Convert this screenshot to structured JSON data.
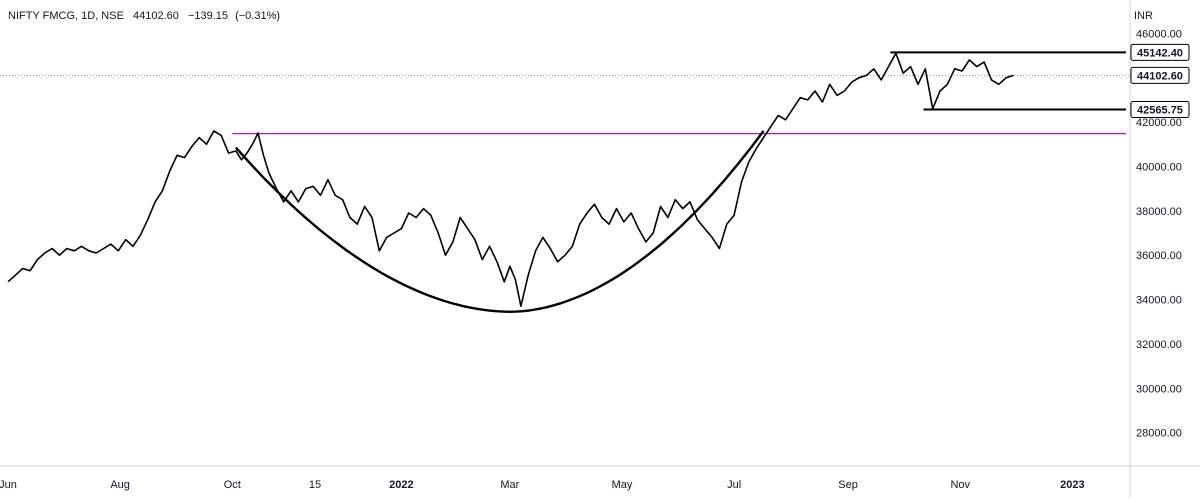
{
  "legend": {
    "symbol_text": "NIFTY FMCG, 1D, NSE",
    "close": "44102.60",
    "change": "−139.15",
    "change_pct": "(−0.31%)"
  },
  "currency": "INR",
  "colors": {
    "price_line": "#000000",
    "resistance_line": "#9c27b0",
    "grid_dotted": "#787b86",
    "axis_border": "#d1d4dc",
    "badge_bg": "#ffffff",
    "badge_border": "#000000"
  },
  "chart_data": {
    "type": "line",
    "title": "NIFTY FMCG, 1D, NSE",
    "ylabel": "INR",
    "ylim": [
      26500,
      47500
    ],
    "xlim": [
      "2021-06-01",
      "2023-01-28"
    ],
    "y_ticks": [
      "46000.00",
      "42000.00",
      "40000.00",
      "38000.00",
      "36000.00",
      "34000.00",
      "32000.00",
      "30000.00",
      "28000.00"
    ],
    "x_ticks": [
      {
        "label": "Jun",
        "date": "2021-06-01",
        "bold": false
      },
      {
        "label": "Aug",
        "date": "2021-08-01",
        "bold": false
      },
      {
        "label": "Oct",
        "date": "2021-10-01",
        "bold": false
      },
      {
        "label": "15",
        "date": "2021-11-15",
        "bold": false
      },
      {
        "label": "2022",
        "date": "2022-01-01",
        "bold": true
      },
      {
        "label": "Mar",
        "date": "2022-03-01",
        "bold": false
      },
      {
        "label": "May",
        "date": "2022-05-01",
        "bold": false
      },
      {
        "label": "Jul",
        "date": "2022-07-01",
        "bold": false
      },
      {
        "label": "Sep",
        "date": "2022-09-01",
        "bold": false
      },
      {
        "label": "Nov",
        "date": "2022-11-01",
        "bold": false
      },
      {
        "label": "2023",
        "date": "2023-01-01",
        "bold": true
      }
    ],
    "series": [
      {
        "name": "",
        "points": [
          [
            "2021-06-01",
            34800
          ],
          [
            "2021-06-05",
            35100
          ],
          [
            "2021-06-09",
            35400
          ],
          [
            "2021-06-13",
            35300
          ],
          [
            "2021-06-17",
            35800
          ],
          [
            "2021-06-21",
            36100
          ],
          [
            "2021-06-25",
            36300
          ],
          [
            "2021-06-29",
            36000
          ],
          [
            "2021-07-03",
            36300
          ],
          [
            "2021-07-07",
            36200
          ],
          [
            "2021-07-11",
            36400
          ],
          [
            "2021-07-15",
            36200
          ],
          [
            "2021-07-19",
            36100
          ],
          [
            "2021-07-23",
            36300
          ],
          [
            "2021-07-27",
            36500
          ],
          [
            "2021-07-31",
            36200
          ],
          [
            "2021-08-04",
            36700
          ],
          [
            "2021-08-08",
            36400
          ],
          [
            "2021-08-12",
            36900
          ],
          [
            "2021-08-16",
            37600
          ],
          [
            "2021-08-20",
            38400
          ],
          [
            "2021-08-24",
            38900
          ],
          [
            "2021-08-28",
            39800
          ],
          [
            "2021-09-01",
            40500
          ],
          [
            "2021-09-05",
            40400
          ],
          [
            "2021-09-09",
            40900
          ],
          [
            "2021-09-13",
            41300
          ],
          [
            "2021-09-17",
            41000
          ],
          [
            "2021-09-21",
            41600
          ],
          [
            "2021-09-25",
            41400
          ],
          [
            "2021-09-29",
            40600
          ],
          [
            "2021-10-03",
            40700
          ],
          [
            "2021-10-06",
            40300
          ],
          [
            "2021-10-09",
            40600
          ],
          [
            "2021-10-12",
            41000
          ],
          [
            "2021-10-15",
            41500
          ],
          [
            "2021-10-18",
            40500
          ],
          [
            "2021-10-21",
            39700
          ],
          [
            "2021-10-25",
            39000
          ],
          [
            "2021-10-29",
            38400
          ],
          [
            "2021-11-02",
            38900
          ],
          [
            "2021-11-06",
            38400
          ],
          [
            "2021-11-10",
            39000
          ],
          [
            "2021-11-14",
            39100
          ],
          [
            "2021-11-18",
            38700
          ],
          [
            "2021-11-22",
            39400
          ],
          [
            "2021-11-26",
            38700
          ],
          [
            "2021-11-30",
            38500
          ],
          [
            "2021-12-04",
            37700
          ],
          [
            "2021-12-08",
            37400
          ],
          [
            "2021-12-12",
            38200
          ],
          [
            "2021-12-16",
            37700
          ],
          [
            "2021-12-20",
            36200
          ],
          [
            "2021-12-24",
            36800
          ],
          [
            "2021-12-28",
            37000
          ],
          [
            "2022-01-01",
            37200
          ],
          [
            "2022-01-05",
            37900
          ],
          [
            "2022-01-09",
            37700
          ],
          [
            "2022-01-13",
            38100
          ],
          [
            "2022-01-17",
            37800
          ],
          [
            "2022-01-21",
            37000
          ],
          [
            "2022-01-25",
            36000
          ],
          [
            "2022-01-29",
            36600
          ],
          [
            "2022-02-02",
            37700
          ],
          [
            "2022-02-06",
            37200
          ],
          [
            "2022-02-10",
            36700
          ],
          [
            "2022-02-14",
            35800
          ],
          [
            "2022-02-18",
            36400
          ],
          [
            "2022-02-22",
            35700
          ],
          [
            "2022-02-26",
            34800
          ],
          [
            "2022-03-01",
            35500
          ],
          [
            "2022-03-04",
            34900
          ],
          [
            "2022-03-07",
            33700
          ],
          [
            "2022-03-11",
            35100
          ],
          [
            "2022-03-15",
            36200
          ],
          [
            "2022-03-19",
            36800
          ],
          [
            "2022-03-23",
            36300
          ],
          [
            "2022-03-27",
            35700
          ],
          [
            "2022-03-31",
            36000
          ],
          [
            "2022-04-04",
            36400
          ],
          [
            "2022-04-08",
            37400
          ],
          [
            "2022-04-12",
            37900
          ],
          [
            "2022-04-16",
            38300
          ],
          [
            "2022-04-20",
            37700
          ],
          [
            "2022-04-24",
            37400
          ],
          [
            "2022-04-28",
            38100
          ],
          [
            "2022-05-02",
            37500
          ],
          [
            "2022-05-06",
            37900
          ],
          [
            "2022-05-10",
            37200
          ],
          [
            "2022-05-14",
            36600
          ],
          [
            "2022-05-18",
            37000
          ],
          [
            "2022-05-22",
            38200
          ],
          [
            "2022-05-26",
            37700
          ],
          [
            "2022-05-30",
            38500
          ],
          [
            "2022-06-03",
            38100
          ],
          [
            "2022-06-07",
            38400
          ],
          [
            "2022-06-11",
            37600
          ],
          [
            "2022-06-15",
            37200
          ],
          [
            "2022-06-19",
            36800
          ],
          [
            "2022-06-23",
            36300
          ],
          [
            "2022-06-27",
            37400
          ],
          [
            "2022-07-01",
            37800
          ],
          [
            "2022-07-05",
            39300
          ],
          [
            "2022-07-09",
            40200
          ],
          [
            "2022-07-13",
            40800
          ],
          [
            "2022-07-17",
            41300
          ],
          [
            "2022-07-21",
            41800
          ],
          [
            "2022-07-25",
            42300
          ],
          [
            "2022-07-29",
            42100
          ],
          [
            "2022-08-02",
            42600
          ],
          [
            "2022-08-06",
            43100
          ],
          [
            "2022-08-10",
            43000
          ],
          [
            "2022-08-14",
            43400
          ],
          [
            "2022-08-18",
            42900
          ],
          [
            "2022-08-22",
            43700
          ],
          [
            "2022-08-26",
            43200
          ],
          [
            "2022-08-30",
            43400
          ],
          [
            "2022-09-03",
            43800
          ],
          [
            "2022-09-07",
            44000
          ],
          [
            "2022-09-11",
            44100
          ],
          [
            "2022-09-15",
            44400
          ],
          [
            "2022-09-19",
            43900
          ],
          [
            "2022-09-23",
            44500
          ],
          [
            "2022-09-27",
            45100
          ],
          [
            "2022-10-01",
            44200
          ],
          [
            "2022-10-05",
            44500
          ],
          [
            "2022-10-09",
            43700
          ],
          [
            "2022-10-13",
            44400
          ],
          [
            "2022-10-17",
            42600
          ],
          [
            "2022-10-21",
            43400
          ],
          [
            "2022-10-25",
            43700
          ],
          [
            "2022-10-29",
            44400
          ],
          [
            "2022-11-02",
            44300
          ],
          [
            "2022-11-06",
            44800
          ],
          [
            "2022-11-10",
            44500
          ],
          [
            "2022-11-14",
            44700
          ],
          [
            "2022-11-18",
            43900
          ],
          [
            "2022-11-22",
            43700
          ],
          [
            "2022-11-26",
            44000
          ],
          [
            "2022-11-30",
            44102.6
          ]
        ]
      }
    ],
    "annotations": {
      "last_price": {
        "value": 44102.6,
        "label": "44102.60"
      },
      "range_top": {
        "value": 45142.4,
        "label": "45142.40",
        "from": "2022-09-24",
        "to": "2023-01-28"
      },
      "range_bottom": {
        "value": 42565.75,
        "label": "42565.75",
        "from": "2022-10-12",
        "to": "2023-01-28"
      },
      "resistance": {
        "value": 41480,
        "from": "2021-10-01",
        "to": "2023-01-28"
      },
      "cup_curve": {
        "from": "2021-10-03",
        "bottom": "2022-03-01",
        "bottom_value": 33450,
        "to": "2022-07-17",
        "start_value": 40850,
        "end_value": 41600
      }
    }
  }
}
